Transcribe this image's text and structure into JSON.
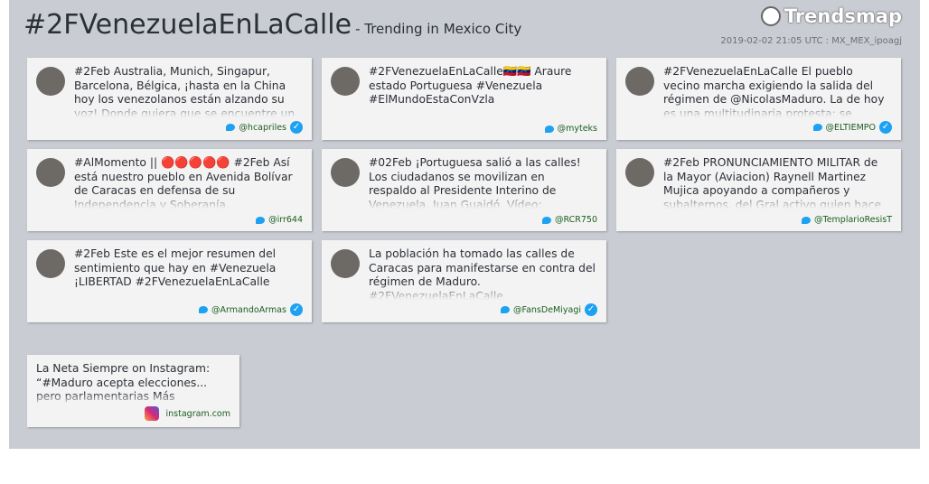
{
  "header": {
    "title": "#2FVenezuelaEnLaCalle",
    "subtitle": "- Trending in Mexico City",
    "logo": "Trendsmap",
    "timestamp": "2019-02-02 21:05 UTC : MX_MEX_ipoagj"
  },
  "tweets": [
    {
      "text": "#2Feb Australia, Munich, Singapur, Barcelona, Bélgica, ¡hasta en la China hoy los venezolanos están alzando su voz! Donde quiera que se encuentre un",
      "handle": "@hcapriles",
      "verified": true
    },
    {
      "text": "#2FVenezuelaEnLaCalle🇻🇪🇻🇪 Araure estado Portuguesa #Venezuela #ElMundoEstaConVzla",
      "handle": "@myteks",
      "verified": false
    },
    {
      "text": "#2FVenezuelaEnLaCalle El pueblo vecino marcha exigiendo la salida del régimen de @NicolasMaduro. La de hoy es una multitudinaria protesta; se esperan las",
      "handle": "@ELTIEMPO",
      "verified": true
    },
    {
      "text": "#AlMomento || 🔴🔴🔴🔴🔴 #2Feb Así está nuestro pueblo en Avenida Bolívar de Caracas en defensa de su Independencia y Soberanía.",
      "handle": "@irr644",
      "verified": false
    },
    {
      "text": "#02Feb ¡Portuguesa salió a las calles! Los ciudadanos se movilizan en respaldo al Presidente Interino de Venezuela, Juan Guaidó. Vídeo: @TVVnoticias",
      "handle": "@RCR750",
      "verified": false
    },
    {
      "text": "#2Feb PRONUNCIAMIENTO MILITAR de la Mayor (Aviacion) Raynell Martinez Mujica apoyando a compañeros y subalternos, del Gral activo quien hace pocas horas",
      "handle": "@TemplarioResisT",
      "verified": false
    },
    {
      "text": "#2Feb Este es el mejor resumen del sentimiento que hay en #Venezuela ¡LIBERTAD #2FVenezuelaEnLaCalle",
      "handle": "@ArmandoArmas",
      "verified": true
    },
    {
      "text": "La población ha tomado las calles de Caracas para manifestarse en contra del régimen de Maduro. #2FVenezuelaEnLaCalle",
      "handle": "@FansDeMiyagi",
      "verified": true
    }
  ],
  "instagram": {
    "text": "La Neta Siempre on Instagram: “#Maduro acepta elecciones... pero parlamentarias Más",
    "source": "instagram.com"
  }
}
